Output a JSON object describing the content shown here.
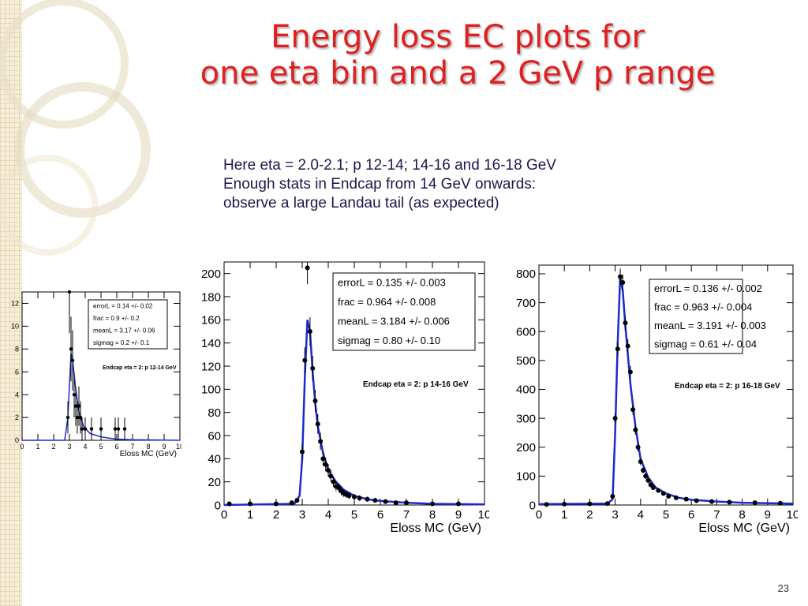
{
  "slide": {
    "title_line1": "Energy loss EC plots for",
    "title_line2": "one eta bin and a 2 GeV p range",
    "description": [
      "Here eta = 2.0-2.1; p 12-14; 14-16 and 16-18 GeV",
      "Enough stats in Endcap from 14 GeV onwards:",
      "observe a large Landau tail (as expected)"
    ],
    "page_number": "23"
  },
  "colors": {
    "title": "#e02020",
    "fit": "#1a2ad0",
    "data": "#000000"
  },
  "chart_data": [
    {
      "type": "scatter",
      "xlabel": "Eloss MC (GeV)",
      "ylabel": "",
      "xlim": [
        0,
        10
      ],
      "ylim": [
        0,
        13
      ],
      "xticks": [
        0,
        1,
        2,
        3,
        4,
        5,
        6,
        7,
        8,
        9,
        10
      ],
      "yticks": [
        0,
        2,
        4,
        6,
        8,
        10,
        12
      ],
      "annotation": "Endcap eta = 2: p 12-14 GeV",
      "stats": [
        {
          "name": "errorL",
          "value": "0.14 +/- 0.02"
        },
        {
          "name": "frac",
          "value": "0.9 +/- 0.2"
        },
        {
          "name": "meanL",
          "value": "3.17 +/- 0.06"
        },
        {
          "name": "sigmag",
          "value": "0.2 +/- 0.1"
        }
      ],
      "points": [
        [
          2.9,
          2
        ],
        [
          3.0,
          13
        ],
        [
          3.1,
          8
        ],
        [
          3.2,
          7
        ],
        [
          3.3,
          4
        ],
        [
          3.4,
          3
        ],
        [
          3.5,
          2
        ],
        [
          3.6,
          3
        ],
        [
          3.7,
          2
        ],
        [
          3.8,
          1
        ],
        [
          4.0,
          1
        ],
        [
          4.4,
          1
        ],
        [
          5.0,
          1
        ],
        [
          5.9,
          1
        ],
        [
          6.1,
          1
        ],
        [
          6.5,
          1
        ]
      ],
      "fit": [
        [
          0,
          0
        ],
        [
          2.7,
          0
        ],
        [
          2.9,
          2
        ],
        [
          3.1,
          7.6
        ],
        [
          3.2,
          7
        ],
        [
          3.4,
          4.5
        ],
        [
          3.6,
          2.5
        ],
        [
          3.9,
          1.2
        ],
        [
          4.3,
          0.6
        ],
        [
          5,
          0.3
        ],
        [
          6,
          0.1
        ],
        [
          7,
          0.05
        ],
        [
          10,
          0
        ]
      ]
    },
    {
      "type": "scatter",
      "xlabel": "Eloss MC (GeV)",
      "ylabel": "",
      "xlim": [
        0,
        10
      ],
      "ylim": [
        0,
        210
      ],
      "xticks": [
        0,
        1,
        2,
        3,
        4,
        5,
        6,
        7,
        8,
        9,
        10
      ],
      "yticks": [
        0,
        20,
        40,
        60,
        80,
        100,
        120,
        140,
        160,
        180,
        200
      ],
      "annotation": "Endcap eta = 2: p 14-16 GeV",
      "stats": [
        {
          "name": "errorL",
          "value": "0.135 +/- 0.003"
        },
        {
          "name": "frac",
          "value": "0.964 +/- 0.008"
        },
        {
          "name": "meanL",
          "value": "3.184 +/- 0.006"
        },
        {
          "name": "sigmag",
          "value": "0.80 +/- 0.10"
        }
      ],
      "points": [
        [
          0.2,
          1
        ],
        [
          1.0,
          1
        ],
        [
          2.0,
          1
        ],
        [
          2.6,
          2
        ],
        [
          2.8,
          4
        ],
        [
          3.0,
          46
        ],
        [
          3.1,
          125
        ],
        [
          3.2,
          205
        ],
        [
          3.3,
          150
        ],
        [
          3.4,
          118
        ],
        [
          3.5,
          90
        ],
        [
          3.6,
          70
        ],
        [
          3.7,
          55
        ],
        [
          3.8,
          40
        ],
        [
          3.9,
          35
        ],
        [
          4.0,
          30
        ],
        [
          4.1,
          25
        ],
        [
          4.2,
          20
        ],
        [
          4.3,
          16
        ],
        [
          4.4,
          15
        ],
        [
          4.5,
          12
        ],
        [
          4.6,
          10
        ],
        [
          4.7,
          9
        ],
        [
          4.8,
          8
        ],
        [
          5.0,
          7
        ],
        [
          5.2,
          6
        ],
        [
          5.5,
          5
        ],
        [
          5.8,
          4
        ],
        [
          6.2,
          3
        ],
        [
          6.6,
          2
        ],
        [
          7.0,
          2
        ],
        [
          8.0,
          1
        ],
        [
          9.0,
          1
        ]
      ],
      "fit": [
        [
          0,
          0
        ],
        [
          2.7,
          1
        ],
        [
          2.9,
          8
        ],
        [
          3.0,
          40
        ],
        [
          3.1,
          110
        ],
        [
          3.2,
          160
        ],
        [
          3.3,
          150
        ],
        [
          3.4,
          115
        ],
        [
          3.5,
          88
        ],
        [
          3.6,
          68
        ],
        [
          3.8,
          45
        ],
        [
          4.0,
          30
        ],
        [
          4.3,
          20
        ],
        [
          4.6,
          13
        ],
        [
          5,
          8
        ],
        [
          5.5,
          5
        ],
        [
          6,
          3.5
        ],
        [
          7,
          2
        ],
        [
          8,
          1
        ],
        [
          10,
          0.5
        ]
      ]
    },
    {
      "type": "scatter",
      "xlabel": "Eloss MC (GeV)",
      "ylabel": "",
      "xlim": [
        0,
        10
      ],
      "ylim": [
        0,
        830
      ],
      "xticks": [
        0,
        1,
        2,
        3,
        4,
        5,
        6,
        7,
        8,
        9,
        10
      ],
      "yticks": [
        0,
        100,
        200,
        300,
        400,
        500,
        600,
        700,
        800
      ],
      "annotation": "Endcap eta = 2: p 16-18 GeV",
      "stats": [
        {
          "name": "errorL",
          "value": "0.136 +/- 0.002"
        },
        {
          "name": "frac",
          "value": "0.963 +/- 0.004"
        },
        {
          "name": "meanL",
          "value": "3.191 +/- 0.003"
        },
        {
          "name": "sigmag",
          "value": "0.61 +/- 0.04"
        }
      ],
      "points": [
        [
          0.3,
          2
        ],
        [
          1.0,
          3
        ],
        [
          2.0,
          4
        ],
        [
          2.7,
          5
        ],
        [
          2.9,
          30
        ],
        [
          3.0,
          300
        ],
        [
          3.1,
          540
        ],
        [
          3.2,
          790
        ],
        [
          3.3,
          770
        ],
        [
          3.4,
          630
        ],
        [
          3.5,
          550
        ],
        [
          3.6,
          460
        ],
        [
          3.7,
          330
        ],
        [
          3.8,
          260
        ],
        [
          3.9,
          200
        ],
        [
          4.0,
          150
        ],
        [
          4.1,
          120
        ],
        [
          4.2,
          100
        ],
        [
          4.3,
          85
        ],
        [
          4.4,
          70
        ],
        [
          4.5,
          60
        ],
        [
          4.7,
          50
        ],
        [
          4.9,
          40
        ],
        [
          5.1,
          30
        ],
        [
          5.4,
          25
        ],
        [
          5.8,
          20
        ],
        [
          6.2,
          15
        ],
        [
          6.8,
          12
        ],
        [
          7.5,
          10
        ],
        [
          8.5,
          8
        ],
        [
          9.5,
          6
        ]
      ],
      "fit": [
        [
          0,
          3
        ],
        [
          2.7,
          5
        ],
        [
          2.9,
          20
        ],
        [
          3.0,
          250
        ],
        [
          3.1,
          560
        ],
        [
          3.2,
          790
        ],
        [
          3.3,
          740
        ],
        [
          3.4,
          620
        ],
        [
          3.5,
          520
        ],
        [
          3.6,
          420
        ],
        [
          3.8,
          270
        ],
        [
          4.0,
          160
        ],
        [
          4.3,
          95
        ],
        [
          4.6,
          60
        ],
        [
          5,
          40
        ],
        [
          5.5,
          25
        ],
        [
          6,
          18
        ],
        [
          7,
          12
        ],
        [
          8,
          8
        ],
        [
          10,
          5
        ]
      ]
    }
  ]
}
